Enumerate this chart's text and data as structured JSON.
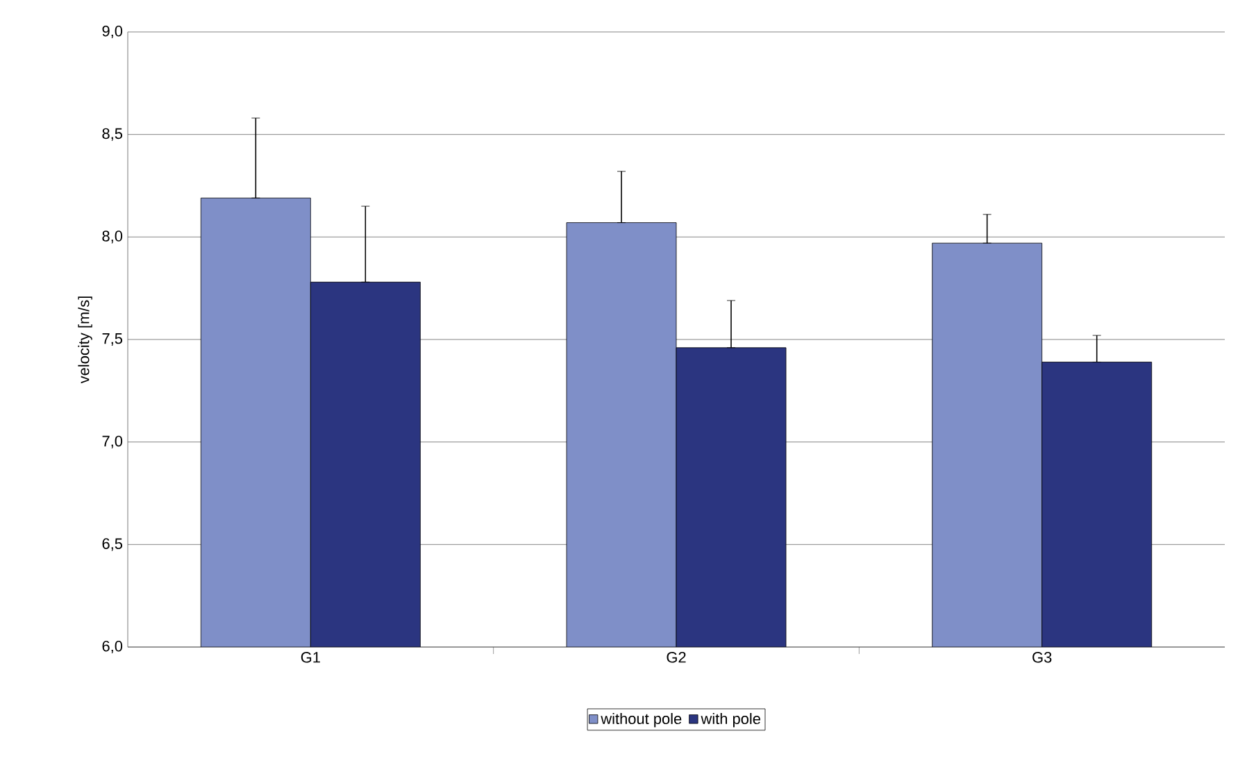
{
  "chart_data": {
    "type": "bar",
    "ylabel": "velocity [m/s]",
    "categories": [
      "G1",
      "G2",
      "G3"
    ],
    "series": [
      {
        "name": "without pole",
        "color": "#7f8fc8",
        "values": [
          8.19,
          8.07,
          7.97
        ],
        "errors": [
          [
            8.19,
            8.58
          ],
          [
            8.07,
            8.32
          ],
          [
            7.97,
            8.11
          ]
        ]
      },
      {
        "name": "with pole",
        "color": "#2b3580",
        "values": [
          7.78,
          7.46,
          7.39
        ],
        "errors": [
          [
            7.78,
            8.15
          ],
          [
            7.46,
            7.69
          ],
          [
            7.39,
            7.52
          ]
        ]
      }
    ],
    "ylim": [
      6.0,
      9.0
    ],
    "yticks": [
      {
        "value": 6.0,
        "label": "6,0"
      },
      {
        "value": 6.5,
        "label": "6,5"
      },
      {
        "value": 7.0,
        "label": "7,0"
      },
      {
        "value": 7.5,
        "label": "7,5"
      },
      {
        "value": 8.0,
        "label": "8,0"
      },
      {
        "value": 8.5,
        "label": "8,5"
      },
      {
        "value": 9.0,
        "label": "9,0"
      }
    ],
    "grid": "y",
    "legend": "bottom"
  }
}
